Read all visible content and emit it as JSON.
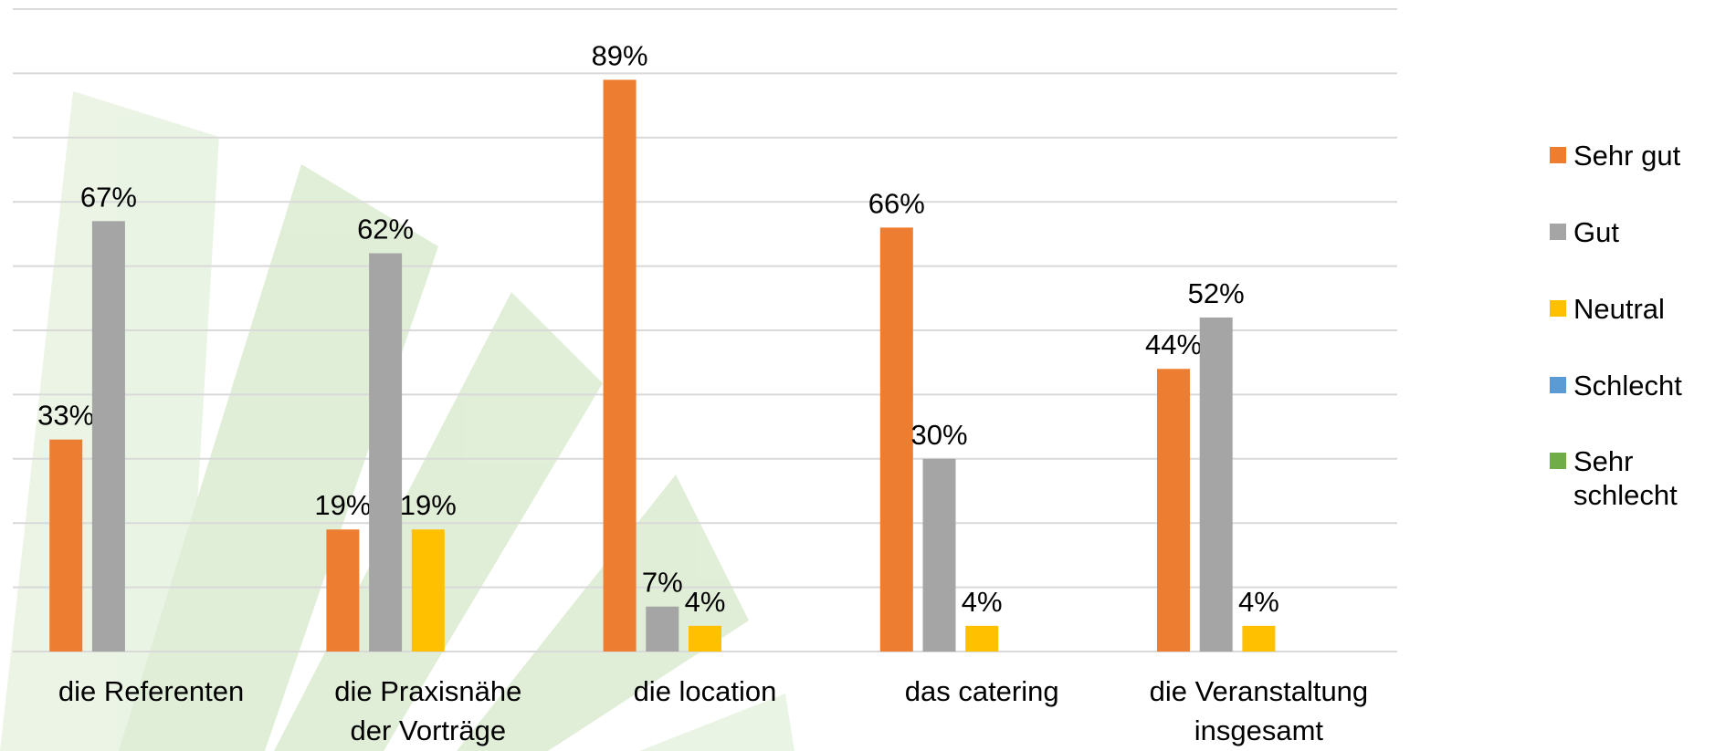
{
  "chart_data": {
    "type": "bar",
    "categories": [
      "die Referenten",
      "die Praxisnähe\nder Vorträge",
      "die location",
      "das catering",
      "die Veranstaltung\ninsgesamt"
    ],
    "series": [
      {
        "name": "Sehr gut",
        "color": "#ed7d31",
        "values": [
          33,
          19,
          89,
          66,
          44
        ],
        "value_labels": [
          "33%",
          "19%",
          "89%",
          "66%",
          "44%"
        ]
      },
      {
        "name": "Gut",
        "color": "#a5a5a5",
        "values": [
          67,
          62,
          7,
          30,
          52
        ],
        "value_labels": [
          "67%",
          "62%",
          "7%",
          "30%",
          "52%"
        ]
      },
      {
        "name": "Neutral",
        "color": "#ffc000",
        "values": [
          null,
          19,
          4,
          4,
          4
        ],
        "value_labels": [
          null,
          "19%",
          "4%",
          "4%",
          "4%"
        ]
      },
      {
        "name": "Schlecht",
        "color": "#5b9bd5",
        "values": [
          null,
          null,
          null,
          null,
          null
        ]
      },
      {
        "name": "Sehr\nschlecht",
        "color": "#70ad47",
        "values": [
          null,
          null,
          null,
          null,
          null
        ]
      }
    ],
    "ylim": [
      0,
      100
    ],
    "yticks": [
      0,
      10,
      20,
      30,
      40,
      50,
      60,
      70,
      80,
      90,
      100
    ],
    "grid": true,
    "legend": "right"
  }
}
